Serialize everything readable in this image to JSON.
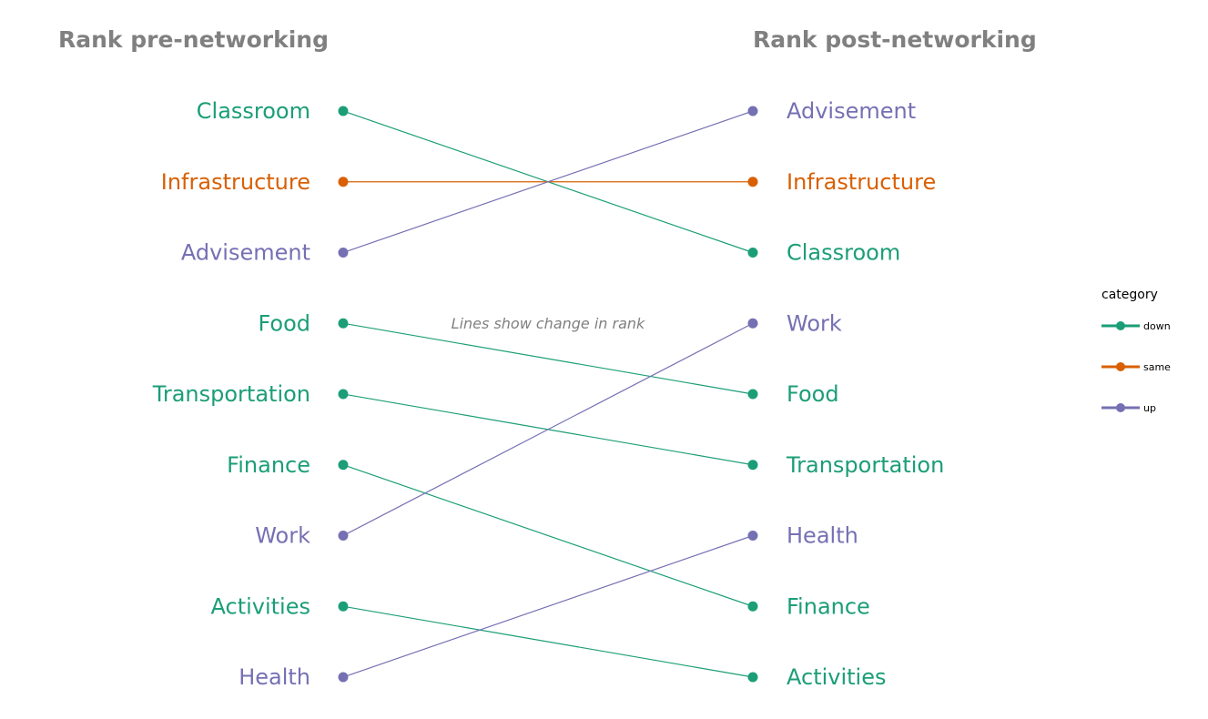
{
  "chart_data": {
    "type": "slope",
    "left_header": "Rank pre-networking",
    "right_header": "Rank post-networking",
    "annotation": "Lines show change in rank",
    "legend": {
      "title": "category",
      "placement": "right",
      "items": [
        {
          "key": "down",
          "label": "down",
          "color": "#1b9e77"
        },
        {
          "key": "same",
          "label": "same",
          "color": "#d95f02"
        },
        {
          "key": "up",
          "label": "up",
          "color": "#7570b3"
        }
      ]
    },
    "items": [
      {
        "name": "Classroom",
        "pre_rank": 1,
        "post_rank": 3,
        "category": "down"
      },
      {
        "name": "Infrastructure",
        "pre_rank": 2,
        "post_rank": 2,
        "category": "same"
      },
      {
        "name": "Advisement",
        "pre_rank": 3,
        "post_rank": 1,
        "category": "up"
      },
      {
        "name": "Food",
        "pre_rank": 4,
        "post_rank": 5,
        "category": "down"
      },
      {
        "name": "Transportation",
        "pre_rank": 5,
        "post_rank": 6,
        "category": "down"
      },
      {
        "name": "Finance",
        "pre_rank": 6,
        "post_rank": 8,
        "category": "down"
      },
      {
        "name": "Work",
        "pre_rank": 7,
        "post_rank": 4,
        "category": "up"
      },
      {
        "name": "Activities",
        "pre_rank": 8,
        "post_rank": 9,
        "category": "down"
      },
      {
        "name": "Health",
        "pre_rank": 9,
        "post_rank": 7,
        "category": "up"
      }
    ]
  }
}
